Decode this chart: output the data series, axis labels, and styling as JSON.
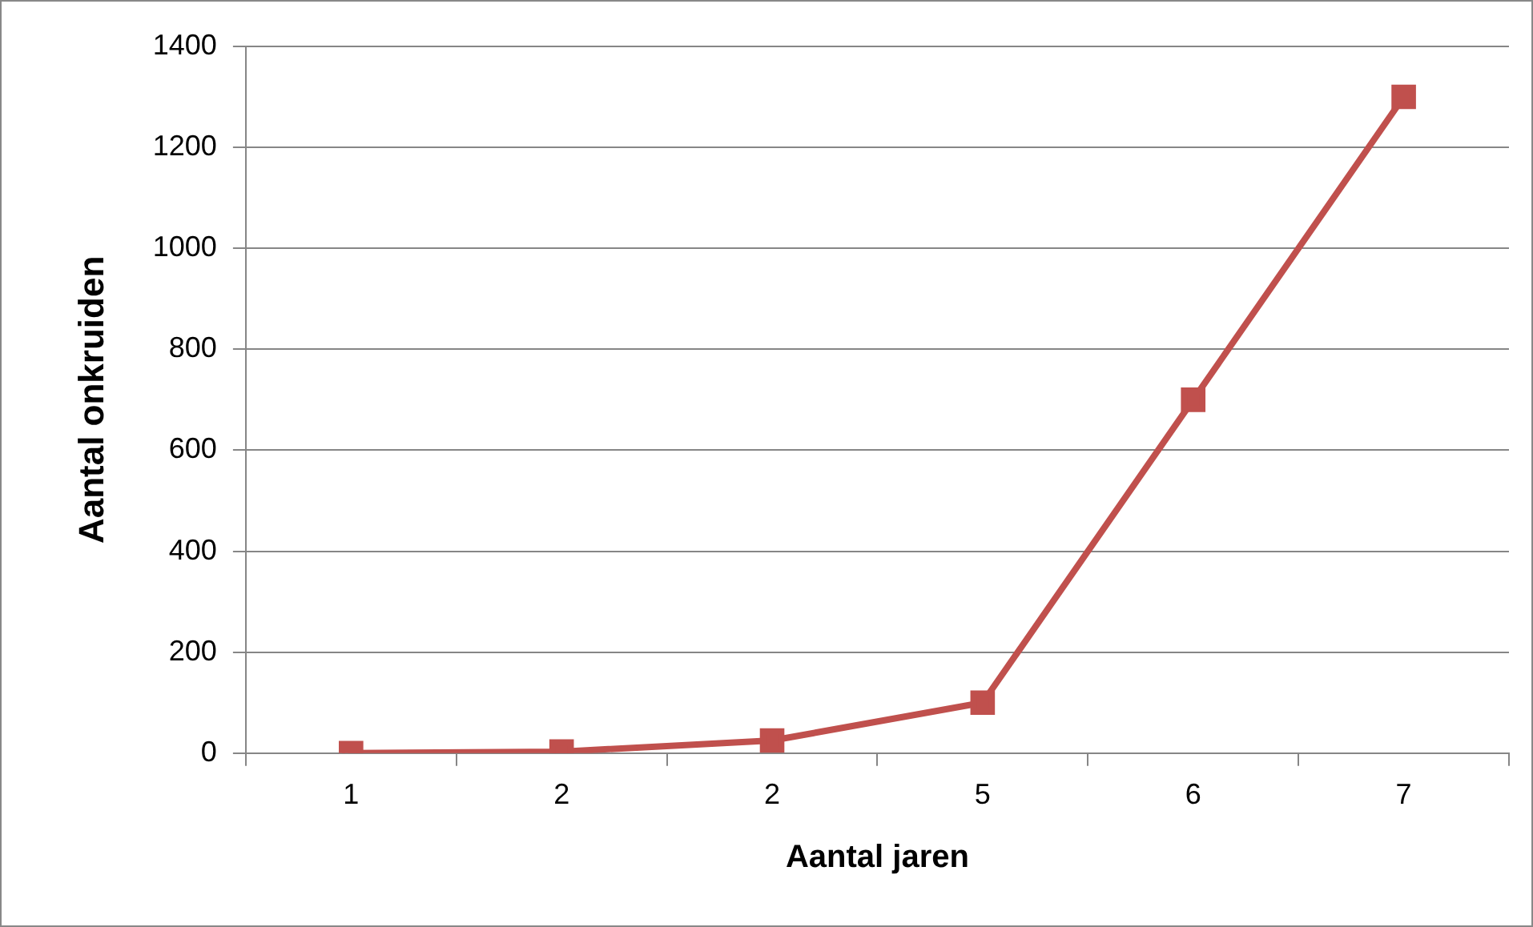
{
  "chart_data": {
    "type": "line",
    "xlabel": "Aantal jaren",
    "ylabel": "Aantal onkruiden",
    "categories": [
      "1",
      "2",
      "2",
      "5",
      "6",
      "7"
    ],
    "series": [
      {
        "color": "#c0504d",
        "values": [
          0,
          3,
          25,
          100,
          700,
          1300
        ]
      }
    ],
    "ylim": [
      0,
      1400
    ],
    "yticks": [
      0,
      200,
      400,
      600,
      800,
      1000,
      1200,
      1400
    ],
    "grid": "y",
    "legend": false,
    "marker": "square",
    "line_style": "solid"
  }
}
